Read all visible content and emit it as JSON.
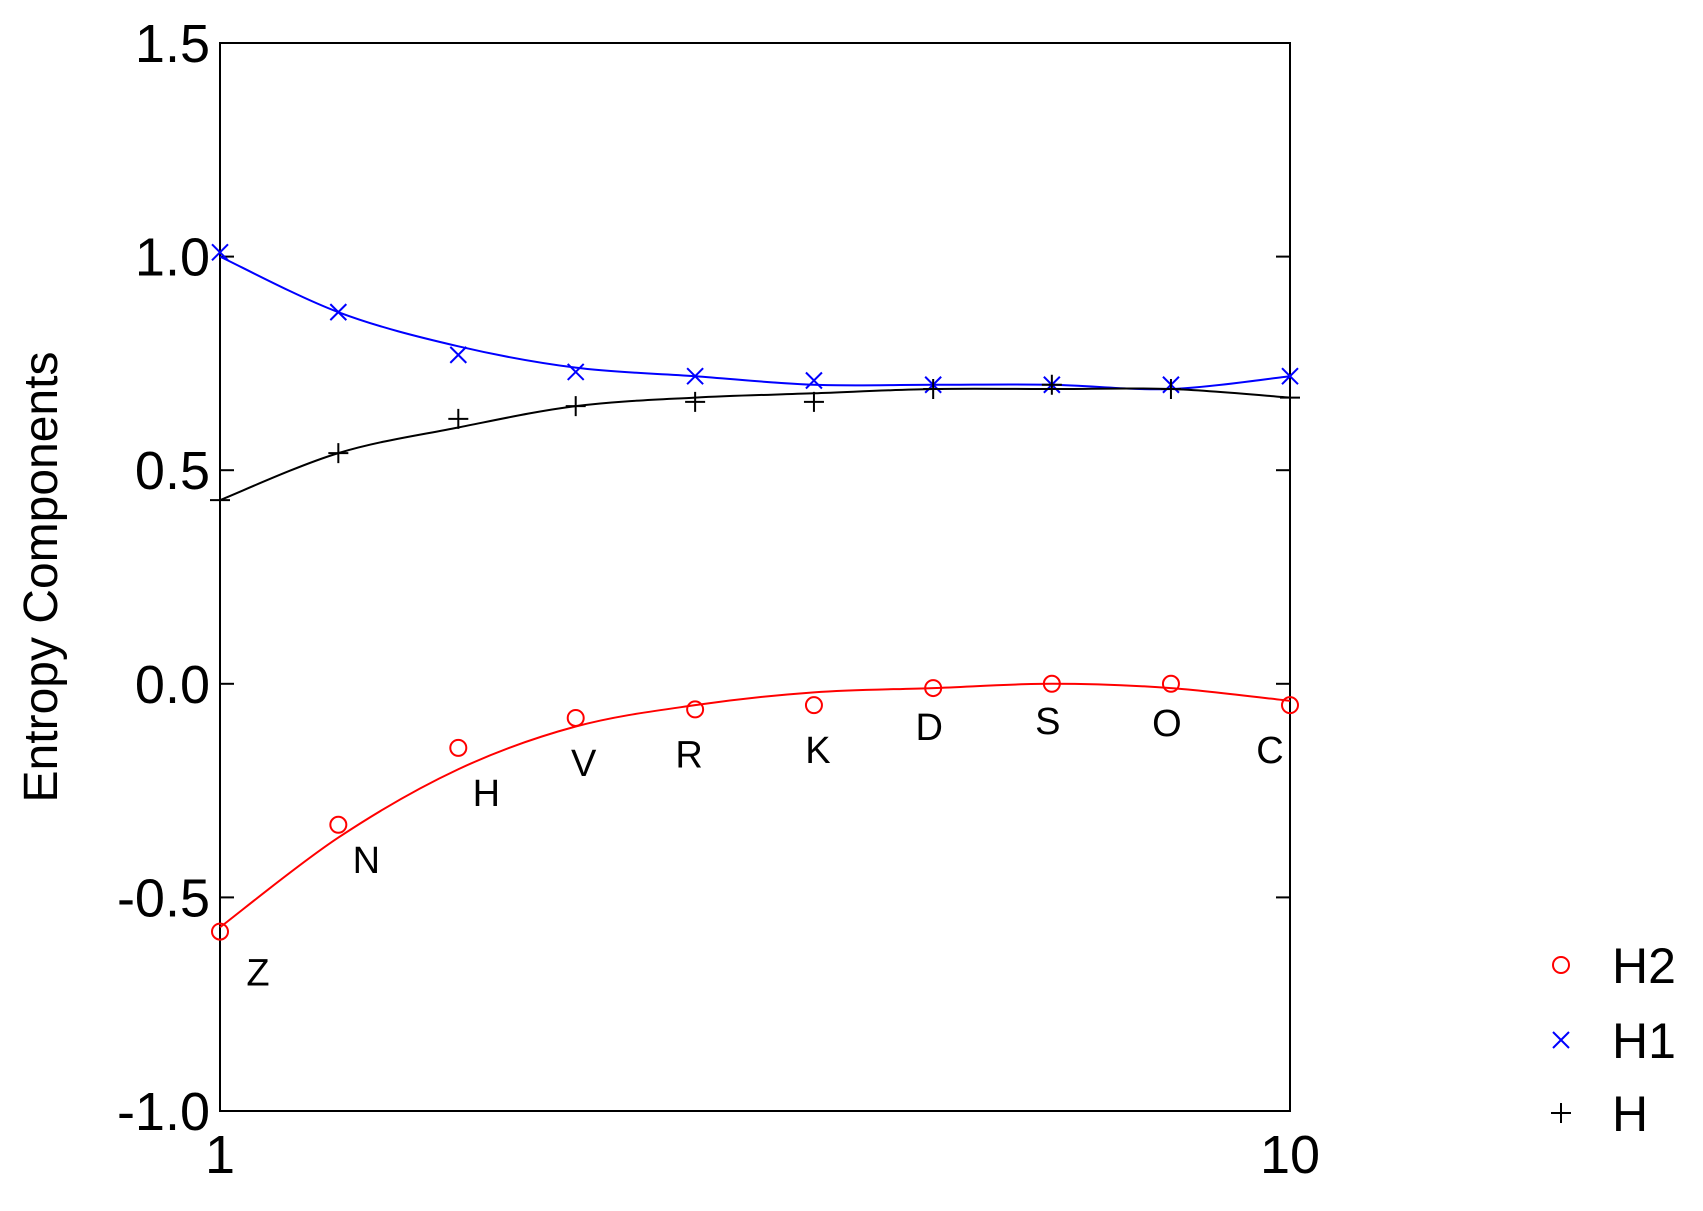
{
  "chart_data": {
    "type": "line",
    "title": "",
    "xlabel": "",
    "ylabel": "Entropy Components",
    "xscale": "log",
    "xlim": [
      1,
      10
    ],
    "ylim": [
      -1.0,
      1.5
    ],
    "x_ticks": [
      {
        "value": 1,
        "label": "1"
      },
      {
        "value": 10,
        "label": "10"
      }
    ],
    "y_ticks": [
      {
        "value": 1.5,
        "label": "1.5"
      },
      {
        "value": 1.0,
        "label": "1.0"
      },
      {
        "value": 0.5,
        "label": "0.5"
      },
      {
        "value": 0.0,
        "label": "0.0"
      },
      {
        "value": -0.5,
        "label": "-0.5"
      },
      {
        "value": -1.0,
        "label": "-1.0"
      }
    ],
    "grid": false,
    "legend_position": "right",
    "x": [
      1,
      1.29,
      1.67,
      2.15,
      2.78,
      3.59,
      4.64,
      5.99,
      7.74,
      10
    ],
    "point_labels": [
      "Z",
      "N",
      "H",
      "V",
      "R",
      "K",
      "D",
      "S",
      "O",
      "C"
    ],
    "series": [
      {
        "name": "H2",
        "marker": "circle",
        "color": "#ff0000",
        "values": [
          -0.58,
          -0.33,
          -0.15,
          -0.08,
          -0.06,
          -0.05,
          -0.01,
          0.0,
          0.0,
          -0.05
        ],
        "fit": [
          -0.57,
          -0.36,
          -0.2,
          -0.1,
          -0.05,
          -0.02,
          -0.01,
          0.0,
          -0.01,
          -0.04
        ]
      },
      {
        "name": "H1",
        "marker": "x",
        "color": "#0000ff",
        "values": [
          1.01,
          0.87,
          0.77,
          0.73,
          0.72,
          0.71,
          0.7,
          0.7,
          0.7,
          0.72
        ],
        "fit": [
          1.0,
          0.87,
          0.79,
          0.74,
          0.72,
          0.7,
          0.7,
          0.7,
          0.69,
          0.72
        ]
      },
      {
        "name": "H",
        "marker": "plus",
        "color": "#000000",
        "values": [
          0.43,
          0.54,
          0.62,
          0.65,
          0.66,
          0.66,
          0.69,
          0.7,
          0.69,
          0.67
        ],
        "fit": [
          0.43,
          0.54,
          0.6,
          0.65,
          0.67,
          0.68,
          0.69,
          0.69,
          0.69,
          0.67
        ]
      }
    ]
  }
}
